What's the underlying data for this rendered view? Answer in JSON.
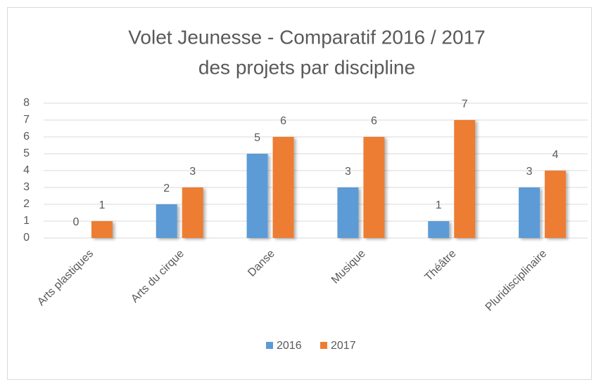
{
  "chart_data": {
    "type": "bar",
    "title": [
      "Volet Jeunesse  - Comparatif 2016 / 2017",
      "des projets par discipline"
    ],
    "categories": [
      "Arts plastiques",
      "Arts du cirque",
      "Danse",
      "Musique",
      "Théâtre",
      "Pluridisciplinaire"
    ],
    "series": [
      {
        "name": "2016",
        "color": "#5b9bd5",
        "values": [
          0,
          2,
          5,
          3,
          1,
          3
        ]
      },
      {
        "name": "2017",
        "color": "#ed7d31",
        "values": [
          1,
          3,
          6,
          6,
          7,
          4
        ]
      }
    ],
    "ylim": [
      0,
      8
    ],
    "yticks": [
      0,
      1,
      2,
      3,
      4,
      5,
      6,
      7,
      8
    ],
    "grid": true,
    "legend": "bottom"
  }
}
